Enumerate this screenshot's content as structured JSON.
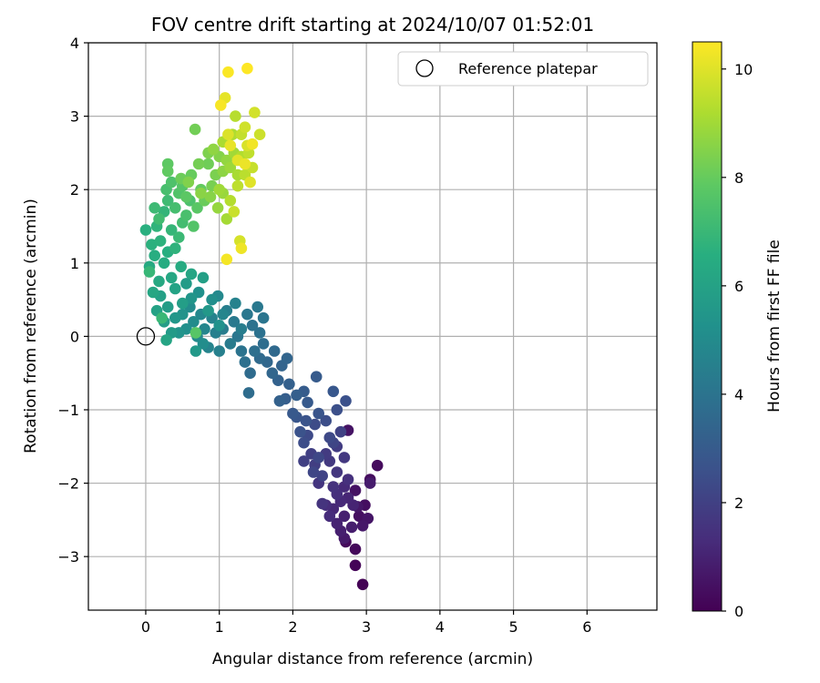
{
  "chart_data": {
    "type": "scatter",
    "title": "FOV centre drift starting at 2024/10/07 01:52:01",
    "xlabel": "Angular distance from reference (arcmin)",
    "ylabel": "Rotation from reference (arcmin)",
    "xlim": [
      -0.78,
      6.95
    ],
    "ylim": [
      -3.73,
      4.0
    ],
    "xticks": [
      "0",
      "1",
      "2",
      "3",
      "4",
      "5",
      "6"
    ],
    "yticks": [
      "−3",
      "−2",
      "−1",
      "0",
      "1",
      "2",
      "3",
      "4"
    ],
    "grid": true,
    "legend": {
      "position": "upper-right",
      "label": "Reference platepar"
    },
    "reference_point": {
      "x": 0,
      "y": 0
    },
    "colorbar": {
      "label": "Hours from first FF file",
      "range": [
        0,
        10.5
      ],
      "ticks": [
        "0",
        "2",
        "4",
        "6",
        "8",
        "10"
      ],
      "colormap": "viridis"
    },
    "series": [
      {
        "columns": [
          "x",
          "y",
          "hours"
        ],
        "points": [
          [
            2.95,
            -3.38,
            0.05
          ],
          [
            2.85,
            -3.12,
            0.1
          ],
          [
            2.85,
            -2.9,
            0.2
          ],
          [
            2.72,
            -2.8,
            0.25
          ],
          [
            3.15,
            -1.76,
            0.3
          ],
          [
            3.05,
            -1.95,
            0.35
          ],
          [
            2.98,
            -2.3,
            0.4
          ],
          [
            2.9,
            -2.45,
            0.45
          ],
          [
            2.85,
            -2.1,
            0.5
          ],
          [
            2.75,
            -1.28,
            0.55
          ],
          [
            3.02,
            -2.48,
            0.6
          ],
          [
            2.88,
            -2.32,
            0.65
          ],
          [
            2.95,
            -2.58,
            0.7
          ],
          [
            2.7,
            -2.75,
            0.75
          ],
          [
            3.05,
            -2.0,
            0.8
          ],
          [
            2.8,
            -2.6,
            0.85
          ],
          [
            2.65,
            -2.65,
            0.9
          ],
          [
            2.7,
            -2.45,
            0.95
          ],
          [
            2.6,
            -2.55,
            1.0
          ],
          [
            2.82,
            -2.3,
            1.05
          ],
          [
            2.75,
            -2.2,
            1.1
          ],
          [
            2.55,
            -2.35,
            1.15
          ],
          [
            2.65,
            -2.25,
            1.2
          ],
          [
            2.7,
            -2.05,
            1.25
          ],
          [
            2.5,
            -2.45,
            1.3
          ],
          [
            2.45,
            -2.3,
            1.35
          ],
          [
            2.6,
            -2.15,
            1.4
          ],
          [
            2.75,
            -1.95,
            1.45
          ],
          [
            2.55,
            -2.05,
            1.5
          ],
          [
            2.4,
            -2.28,
            1.55
          ],
          [
            2.35,
            -2.0,
            1.6
          ],
          [
            2.6,
            -1.85,
            1.65
          ],
          [
            2.7,
            -1.65,
            1.7
          ],
          [
            2.5,
            -1.7,
            1.75
          ],
          [
            2.45,
            -1.6,
            1.8
          ],
          [
            2.6,
            -1.5,
            1.85
          ],
          [
            2.3,
            -1.75,
            1.9
          ],
          [
            2.25,
            -1.6,
            1.95
          ],
          [
            2.15,
            -1.7,
            2.0
          ],
          [
            2.65,
            -1.3,
            2.05
          ],
          [
            2.4,
            -1.9,
            2.1
          ],
          [
            2.55,
            -1.45,
            2.15
          ],
          [
            2.28,
            -1.85,
            2.2
          ],
          [
            2.35,
            -1.65,
            2.25
          ],
          [
            2.5,
            -1.38,
            2.3
          ],
          [
            2.2,
            -1.35,
            2.35
          ],
          [
            2.3,
            -1.2,
            2.4
          ],
          [
            2.15,
            -1.45,
            2.45
          ],
          [
            2.45,
            -1.15,
            2.5
          ],
          [
            2.6,
            -1.0,
            2.55
          ],
          [
            2.72,
            -0.88,
            2.6
          ],
          [
            2.1,
            -1.3,
            2.65
          ],
          [
            2.18,
            -1.15,
            2.7
          ],
          [
            2.35,
            -1.05,
            2.75
          ],
          [
            2.05,
            -1.1,
            2.8
          ],
          [
            2.55,
            -0.75,
            2.85
          ],
          [
            2.0,
            -1.05,
            2.9
          ],
          [
            2.2,
            -0.9,
            2.95
          ],
          [
            2.32,
            -0.55,
            3.0
          ],
          [
            2.15,
            -0.75,
            3.05
          ],
          [
            1.9,
            -0.85,
            3.1
          ],
          [
            2.05,
            -0.8,
            3.15
          ],
          [
            1.95,
            -0.65,
            3.2
          ],
          [
            1.82,
            -0.88,
            3.25
          ],
          [
            1.8,
            -0.6,
            3.3
          ],
          [
            1.85,
            -0.4,
            3.35
          ],
          [
            1.92,
            -0.3,
            3.4
          ],
          [
            1.72,
            -0.5,
            3.45
          ],
          [
            1.65,
            -0.35,
            3.5
          ],
          [
            1.75,
            -0.2,
            3.55
          ],
          [
            1.55,
            -0.3,
            3.6
          ],
          [
            1.42,
            -0.5,
            3.65
          ],
          [
            1.4,
            -0.77,
            3.7
          ],
          [
            1.6,
            -0.1,
            3.75
          ],
          [
            1.48,
            -0.2,
            3.8
          ],
          [
            1.35,
            -0.35,
            3.85
          ],
          [
            1.55,
            0.05,
            3.9
          ],
          [
            1.45,
            0.15,
            3.95
          ],
          [
            1.3,
            -0.2,
            4.0
          ],
          [
            1.6,
            0.25,
            4.05
          ],
          [
            1.25,
            0.0,
            4.1
          ],
          [
            1.38,
            0.3,
            4.15
          ],
          [
            1.52,
            0.4,
            4.2
          ],
          [
            1.2,
            0.2,
            4.25
          ],
          [
            1.15,
            -0.1,
            4.3
          ],
          [
            1.05,
            0.1,
            4.35
          ],
          [
            1.3,
            0.1,
            4.4
          ],
          [
            1.1,
            0.35,
            4.45
          ],
          [
            0.95,
            0.05,
            4.5
          ],
          [
            1.0,
            -0.2,
            4.55
          ],
          [
            1.22,
            0.45,
            4.6
          ],
          [
            0.9,
            0.25,
            4.65
          ],
          [
            0.85,
            -0.15,
            4.7
          ],
          [
            1.05,
            0.3,
            4.75
          ],
          [
            0.8,
            0.1,
            4.8
          ],
          [
            0.75,
            0.3,
            4.85
          ],
          [
            0.98,
            0.55,
            4.9
          ],
          [
            0.7,
            0.0,
            4.95
          ],
          [
            0.65,
            0.2,
            5.0
          ],
          [
            0.6,
            0.4,
            5.05
          ],
          [
            0.78,
            -0.1,
            5.1
          ],
          [
            0.9,
            0.5,
            5.15
          ],
          [
            0.55,
            0.1,
            5.2
          ],
          [
            0.72,
            0.6,
            5.25
          ],
          [
            1.0,
            0.15,
            5.3
          ],
          [
            0.5,
            0.3,
            5.35
          ],
          [
            0.45,
            0.05,
            5.4
          ],
          [
            0.62,
            0.52,
            5.45
          ],
          [
            0.4,
            0.25,
            5.5
          ],
          [
            0.85,
            0.35,
            5.55
          ],
          [
            0.68,
            -0.2,
            5.6
          ],
          [
            0.35,
            0.05,
            5.65
          ],
          [
            0.55,
            0.72,
            5.7
          ],
          [
            0.3,
            0.4,
            5.75
          ],
          [
            0.25,
            0.2,
            5.8
          ],
          [
            0.5,
            0.45,
            5.85
          ],
          [
            0.78,
            0.8,
            5.9
          ],
          [
            0.2,
            0.55,
            5.95
          ],
          [
            0.15,
            0.35,
            6.0
          ],
          [
            0.4,
            0.65,
            6.05
          ],
          [
            0.28,
            -0.05,
            6.1
          ],
          [
            0.62,
            0.85,
            6.15
          ],
          [
            0.1,
            0.6,
            6.2
          ],
          [
            0.35,
            0.8,
            6.25
          ],
          [
            0.18,
            0.75,
            6.3
          ],
          [
            0.05,
            0.95,
            6.35
          ],
          [
            0.48,
            0.95,
            6.4
          ],
          [
            0.25,
            1.0,
            6.45
          ],
          [
            0.12,
            1.1,
            6.5
          ],
          [
            0.3,
            1.15,
            6.55
          ],
          [
            0.0,
            1.45,
            6.6
          ],
          [
            0.08,
            1.25,
            6.65
          ],
          [
            0.2,
            1.3,
            6.7
          ],
          [
            0.4,
            1.2,
            6.75
          ],
          [
            0.15,
            1.5,
            6.8
          ],
          [
            0.25,
            1.7,
            6.85
          ],
          [
            0.35,
            1.45,
            6.9
          ],
          [
            0.05,
            0.88,
            6.95
          ],
          [
            0.22,
            0.25,
            7.0
          ],
          [
            0.45,
            1.35,
            7.05
          ],
          [
            0.12,
            1.75,
            7.1
          ],
          [
            0.3,
            1.85,
            7.15
          ],
          [
            0.18,
            1.6,
            7.2
          ],
          [
            0.5,
            1.55,
            7.25
          ],
          [
            0.4,
            1.75,
            7.3
          ],
          [
            0.28,
            2.0,
            7.35
          ],
          [
            0.55,
            1.65,
            7.4
          ],
          [
            0.6,
            1.85,
            7.45
          ],
          [
            0.35,
            2.1,
            7.5
          ],
          [
            0.45,
            1.95,
            7.55
          ],
          [
            0.65,
            1.5,
            7.6
          ],
          [
            0.5,
            2.05,
            7.65
          ],
          [
            0.68,
            0.05,
            7.7
          ],
          [
            0.7,
            1.75,
            7.75
          ],
          [
            0.55,
            1.9,
            7.8
          ],
          [
            0.3,
            2.35,
            7.85
          ],
          [
            0.3,
            2.25,
            7.9
          ],
          [
            0.75,
            2.0,
            7.95
          ],
          [
            0.62,
            2.2,
            8.0
          ],
          [
            0.8,
            1.85,
            8.05
          ],
          [
            0.48,
            2.15,
            8.1
          ],
          [
            0.85,
            2.35,
            8.15
          ],
          [
            0.67,
            2.82,
            8.2
          ],
          [
            0.72,
            2.35,
            8.25
          ],
          [
            0.9,
            2.05,
            8.3
          ],
          [
            0.95,
            2.2,
            8.35
          ],
          [
            0.85,
            2.5,
            8.4
          ],
          [
            0.58,
            2.1,
            8.45
          ],
          [
            1.0,
            2.45,
            8.5
          ],
          [
            0.88,
            1.9,
            8.55
          ],
          [
            0.75,
            1.95,
            8.6
          ],
          [
            1.05,
            2.25,
            8.65
          ],
          [
            0.92,
            2.55,
            8.7
          ],
          [
            1.1,
            2.4,
            8.75
          ],
          [
            0.98,
            1.75,
            8.8
          ],
          [
            1.05,
            1.95,
            8.85
          ],
          [
            1.15,
            2.3,
            8.9
          ],
          [
            1.0,
            2.0,
            8.95
          ],
          [
            1.2,
            2.5,
            9.0
          ],
          [
            1.1,
            1.6,
            9.05
          ],
          [
            1.25,
            2.2,
            9.1
          ],
          [
            1.05,
            2.65,
            9.15
          ],
          [
            1.18,
            2.75,
            9.2
          ],
          [
            1.3,
            2.45,
            9.25
          ],
          [
            1.15,
            1.85,
            9.3
          ],
          [
            1.22,
            3.0,
            9.35
          ],
          [
            1.35,
            2.2,
            9.4
          ],
          [
            1.25,
            2.05,
            9.45
          ],
          [
            1.4,
            2.5,
            9.5
          ],
          [
            1.3,
            2.75,
            9.55
          ],
          [
            1.45,
            2.3,
            9.6
          ],
          [
            1.2,
            1.7,
            9.65
          ],
          [
            1.55,
            2.75,
            9.7
          ],
          [
            1.35,
            2.85,
            9.75
          ],
          [
            1.48,
            3.05,
            9.8
          ],
          [
            1.28,
            1.3,
            9.85
          ],
          [
            1.38,
            2.6,
            9.9
          ],
          [
            1.12,
            2.75,
            9.95
          ],
          [
            1.42,
            2.1,
            10.0
          ],
          [
            1.25,
            2.4,
            10.05
          ],
          [
            1.08,
            3.25,
            10.1
          ],
          [
            1.15,
            2.6,
            10.15
          ],
          [
            1.35,
            2.35,
            10.2
          ],
          [
            1.3,
            1.2,
            10.25
          ],
          [
            1.45,
            2.62,
            10.3
          ],
          [
            1.1,
            1.05,
            10.35
          ],
          [
            1.02,
            3.15,
            10.4
          ],
          [
            1.12,
            3.6,
            10.45
          ],
          [
            1.38,
            3.65,
            10.5
          ]
        ]
      }
    ]
  }
}
